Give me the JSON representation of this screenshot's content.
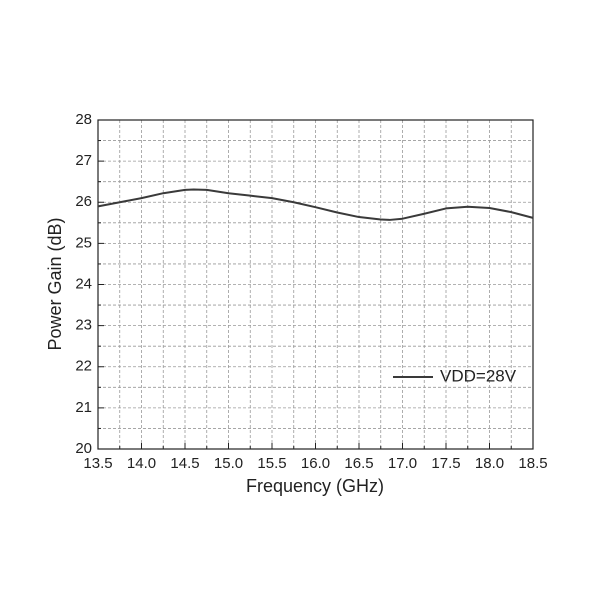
{
  "chart_data": {
    "type": "line",
    "xlabel": "Frequency (GHz)",
    "ylabel": "Power Gain (dB)",
    "x": [
      13.5,
      13.75,
      14.0,
      14.25,
      14.5,
      14.6,
      14.75,
      15.0,
      15.25,
      15.5,
      15.75,
      16.0,
      16.25,
      16.5,
      16.75,
      16.85,
      17.0,
      17.25,
      17.5,
      17.75,
      18.0,
      18.25,
      18.5
    ],
    "series": [
      {
        "name": "VDD=28V",
        "color": "#3a3a3a",
        "values": [
          25.9,
          26.0,
          26.1,
          26.22,
          26.3,
          26.31,
          26.3,
          26.22,
          26.16,
          26.1,
          26.0,
          25.88,
          25.75,
          25.64,
          25.58,
          25.57,
          25.6,
          25.72,
          25.85,
          25.89,
          25.86,
          25.76,
          25.62
        ]
      }
    ],
    "xlim": [
      13.5,
      18.5
    ],
    "xticks": [
      {
        "value": 13.5,
        "label": "13.5"
      },
      {
        "value": 14,
        "label": "14.0"
      },
      {
        "value": 14.5,
        "label": "14.5"
      },
      {
        "value": 15,
        "label": "15.0"
      },
      {
        "value": 15.5,
        "label": "15.5"
      },
      {
        "value": 16,
        "label": "16.0"
      },
      {
        "value": 16.5,
        "label": "16.5"
      },
      {
        "value": 17,
        "label": "17.0"
      },
      {
        "value": 17.5,
        "label": "17.5"
      },
      {
        "value": 18,
        "label": "18.0"
      },
      {
        "value": 18.5,
        "label": "18.5"
      }
    ],
    "ylim": [
      20,
      28
    ],
    "yticks": [
      20,
      21,
      22,
      23,
      24,
      25,
      26,
      27,
      28
    ],
    "grid": true,
    "legend": "lower right"
  }
}
